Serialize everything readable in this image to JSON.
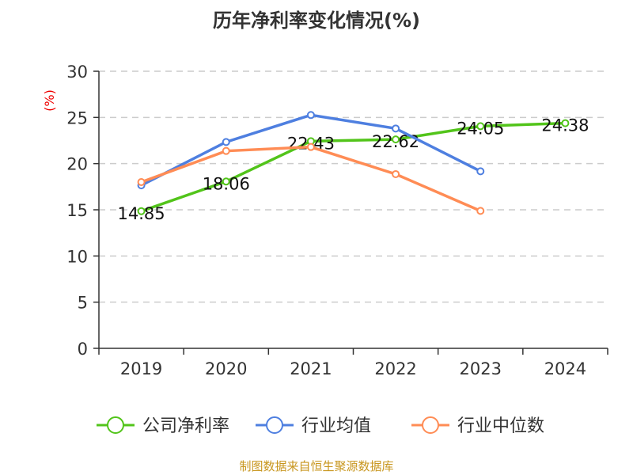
{
  "chart_data": {
    "type": "line",
    "title": "历年净利率变化情况(%)",
    "ylabel": "(%)",
    "xlabel": "",
    "categories": [
      "2019",
      "2020",
      "2021",
      "2022",
      "2023",
      "2024"
    ],
    "ylim": [
      0,
      30
    ],
    "yticks": [
      0,
      5,
      10,
      15,
      20,
      25,
      30
    ],
    "grid": true,
    "legend_position": "bottom",
    "series": [
      {
        "name": "公司净利率",
        "color": "#52c41a",
        "values": [
          14.85,
          18.06,
          22.43,
          22.62,
          24.05,
          24.38
        ],
        "labels": [
          "14.85",
          "18.06",
          "22.43",
          "22.62",
          "24.05",
          "24.38"
        ]
      },
      {
        "name": "行业均值",
        "color": "#4e7fe0",
        "values": [
          17.65,
          22.34,
          25.26,
          23.8,
          19.17,
          null
        ]
      },
      {
        "name": "行业中位数",
        "color": "#ff8c55",
        "values": [
          18.0,
          21.37,
          21.8,
          18.86,
          14.88,
          null
        ]
      }
    ]
  },
  "source": "制图数据来自恒生聚源数据库"
}
